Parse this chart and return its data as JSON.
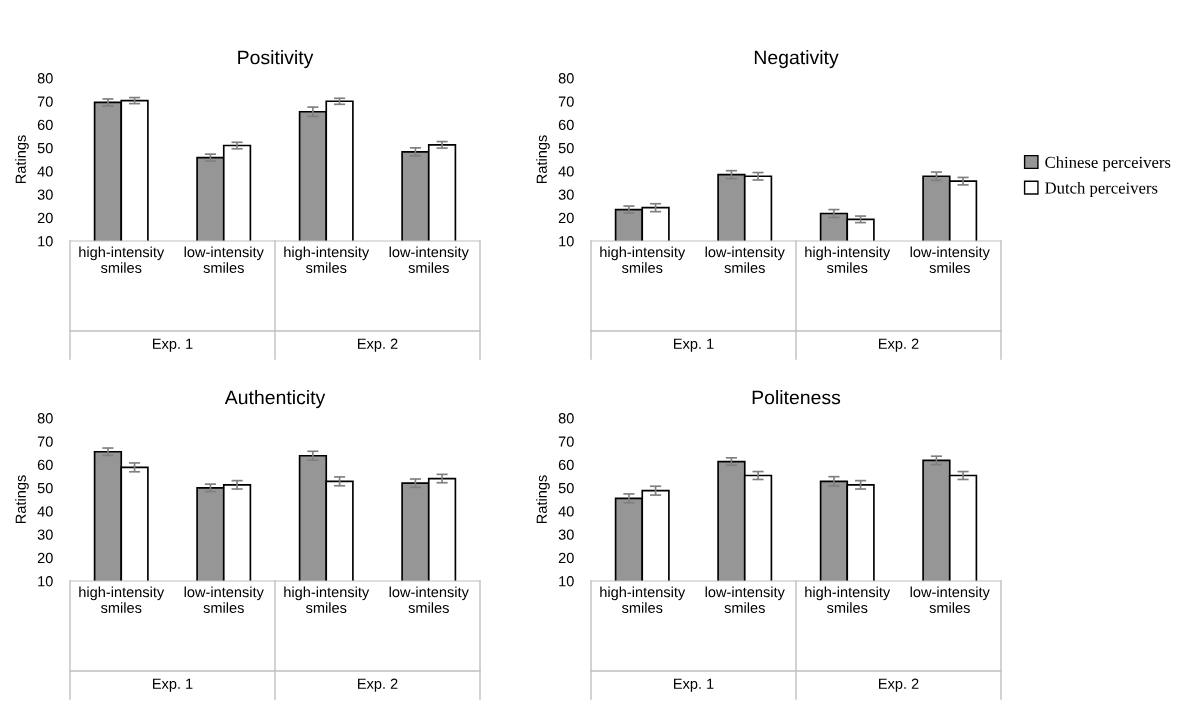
{
  "chart_data": [
    {
      "type": "bar",
      "title": "Positivity",
      "ylabel": "Ratings",
      "categories": [
        "high-intensity\nsmiles",
        "low-intensity\nsmiles",
        "high-intensity\nsmiles",
        "low-intensity\nsmiles"
      ],
      "annotations": [
        "Exp. 1",
        "Exp. 2"
      ],
      "ylim": [
        10,
        80
      ],
      "yticks": [
        10,
        20,
        30,
        40,
        50,
        60,
        70,
        80
      ],
      "grid": false,
      "legend": "right",
      "series": [
        {
          "name": "Chinese perceivers",
          "color": "#969696",
          "values": [
            69.5,
            45.8,
            65.5,
            48.3
          ],
          "errors": [
            1.5,
            1.5,
            2,
            1.7
          ]
        },
        {
          "name": "Dutch perceivers",
          "color": "#ffffff",
          "values": [
            70.3,
            51,
            70,
            51.3
          ],
          "errors": [
            1.3,
            1.4,
            1.3,
            1.4
          ]
        }
      ]
    },
    {
      "type": "bar",
      "title": "Negativity",
      "ylabel": "Ratings",
      "categories": [
        "high-intensity\nsmiles",
        "low-intensity\nsmiles",
        "high-intensity\nsmiles",
        "low-intensity\nsmiles"
      ],
      "annotations": [
        "Exp. 1",
        "Exp. 2"
      ],
      "ylim": [
        10,
        80
      ],
      "yticks": [
        10,
        20,
        30,
        40,
        50,
        60,
        70,
        80
      ],
      "grid": false,
      "series": [
        {
          "color": "#969696",
          "values": [
            23.5,
            38.5,
            21.8,
            37.8
          ],
          "errors": [
            1.5,
            1.7,
            1.7,
            1.8
          ]
        },
        {
          "color": "#ffffff",
          "values": [
            24.3,
            37.8,
            19.3,
            35.7
          ],
          "errors": [
            1.7,
            1.6,
            1.4,
            1.6
          ]
        }
      ]
    },
    {
      "type": "bar",
      "title": "Authenticity",
      "ylabel": "Ratings",
      "categories": [
        "high-intensity\nsmiles",
        "low-intensity\nsmiles",
        "high-intensity\nsmiles",
        "low-intensity\nsmiles"
      ],
      "annotations": [
        "Exp. 1",
        "Exp. 2"
      ],
      "ylim": [
        10,
        80
      ],
      "yticks": [
        10,
        20,
        30,
        40,
        50,
        60,
        70,
        80
      ],
      "grid": false,
      "legend": false,
      "series": [
        {
          "color": "#969696",
          "values": [
            65.5,
            50,
            63.8,
            52
          ],
          "errors": [
            1.6,
            1.6,
            1.9,
            1.8
          ]
        },
        {
          "color": "#ffffff",
          "values": [
            58.8,
            51.3,
            52.8,
            54
          ],
          "errors": [
            1.9,
            1.8,
            1.9,
            1.8
          ]
        }
      ]
    },
    {
      "type": "bar",
      "title": "Politeness",
      "ylabel": "Ratings",
      "categories": [
        "high-intensity\nsmiles",
        "low-intensity\nsmiles",
        "high-intensity\nsmiles",
        "low-intensity\nsmiles"
      ],
      "annotations": [
        "Exp. 1",
        "Exp. 2"
      ],
      "ylim": [
        10,
        80
      ],
      "yticks": [
        10,
        20,
        30,
        40,
        50,
        60,
        70,
        80
      ],
      "grid": false,
      "legend": false,
      "series": [
        {
          "color": "#969696",
          "values": [
            45.5,
            61.3,
            52.8,
            61.8
          ],
          "errors": [
            1.9,
            1.6,
            2,
            1.8
          ]
        },
        {
          "color": "#ffffff",
          "values": [
            48.8,
            55.3,
            51.3,
            55.3
          ],
          "errors": [
            1.9,
            1.7,
            1.8,
            1.7
          ]
        }
      ]
    }
  ]
}
